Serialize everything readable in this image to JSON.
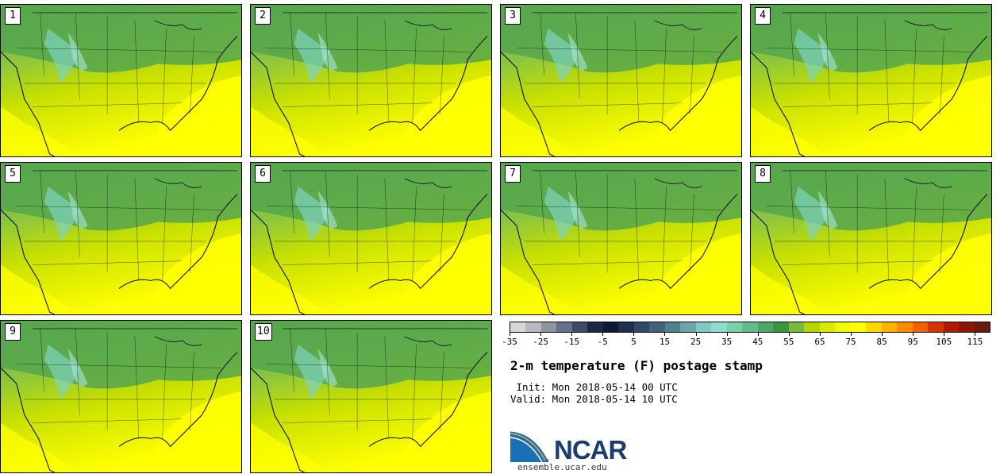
{
  "panels": [
    {
      "label": "1"
    },
    {
      "label": "2"
    },
    {
      "label": "3"
    },
    {
      "label": "4"
    },
    {
      "label": "5"
    },
    {
      "label": "6"
    },
    {
      "label": "7"
    },
    {
      "label": "8"
    },
    {
      "label": "9"
    },
    {
      "label": "10"
    }
  ],
  "map_colors": {
    "land_low": "#56a64e",
    "land_mid": "#8cc63f",
    "land_warm": "#c8e000",
    "hot": "#ffff00",
    "cold": "#7ed3bf",
    "outline": "#000000"
  },
  "colorbar": {
    "colors": [
      "#d4d6da",
      "#b6b9bf",
      "#8e94a0",
      "#67708a",
      "#3d4a6a",
      "#1c2743",
      "#0e1a33",
      "#1c3150",
      "#2e4b66",
      "#3f647c",
      "#4f8090",
      "#6aa6ab",
      "#80c8c2",
      "#8edccb",
      "#79d0a9",
      "#5fbd87",
      "#4aa765",
      "#3c963f",
      "#7ab83a",
      "#b3d600",
      "#d7eb00",
      "#f3f900",
      "#ffff00",
      "#ffd700",
      "#ffb300",
      "#ff8c00",
      "#f45f00",
      "#d63300",
      "#b01a00",
      "#8e1500",
      "#6b1a0e"
    ],
    "tick_labels": [
      "-35",
      "-25",
      "-15",
      "-5",
      "5",
      "15",
      "25",
      "35",
      "45",
      "55",
      "65",
      "75",
      "85",
      "95",
      "105",
      "115"
    ]
  },
  "title": "2-m temperature (F) postage stamp",
  "init": " Init: Mon 2018-05-14 00 UTC",
  "valid": "Valid: Mon 2018-05-14 10 UTC",
  "logo": {
    "name": "NCAR",
    "url": "ensemble.ucar.edu",
    "colors": {
      "blue": "#1a6fb5",
      "dark": "#1a3d6e",
      "orange": "#e8a24b"
    }
  }
}
